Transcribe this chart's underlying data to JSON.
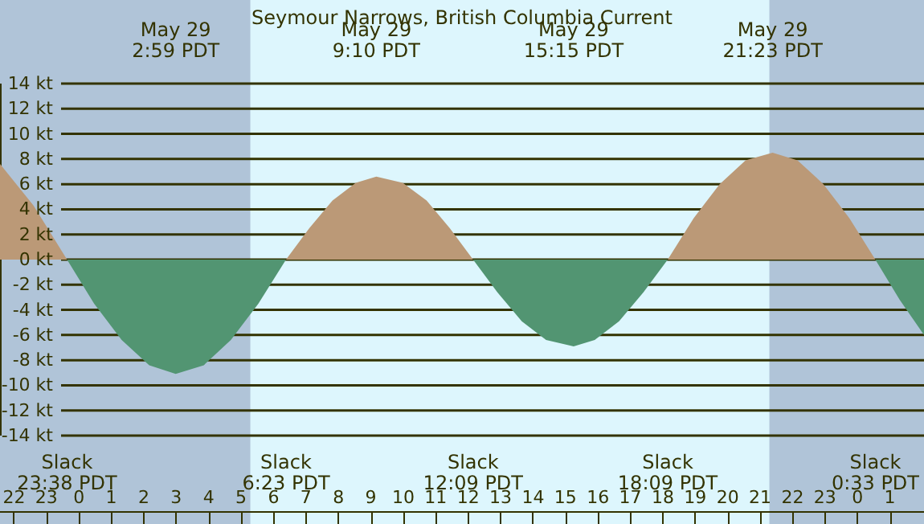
{
  "chart_data": {
    "type": "area",
    "title": "Seymour Narrows, British Columbia Current",
    "x": [
      "--05-28T21:34",
      "--05-28T22:36",
      "--05-28T23:38",
      "--05-29T00:28",
      "--05-29T01:19",
      "--05-29T02:10",
      "--05-29T02:59",
      "--05-29T03:51",
      "--05-29T04:41",
      "--05-29T05:32",
      "--05-29T06:23",
      "--05-29T07:06",
      "--05-29T07:49",
      "--05-29T08:32",
      "--05-29T09:10",
      "--05-29T09:59",
      "--05-29T10:43",
      "--05-29T11:26",
      "--05-29T12:09",
      "--05-29T12:54",
      "--05-29T13:39",
      "--05-29T14:24",
      "--05-29T15:15",
      "--05-29T15:54",
      "--05-29T16:39",
      "--05-29T17:24",
      "--05-29T18:09",
      "--05-29T18:57",
      "--05-29T19:45",
      "--05-29T20:33",
      "--05-29T21:23",
      "--05-29T22:09",
      "--05-29T22:57",
      "--05-29T23:45",
      "--05-30T00:33",
      "--05-30T01:18",
      "--05-30T02:03"
    ],
    "series": [
      {
        "color": "#bb9977",
        "values": [
          7.6,
          4.3,
          0,
          null,
          null,
          null,
          null,
          null,
          null,
          null,
          0,
          2.5,
          4.7,
          6.1,
          6.6,
          6.1,
          4.7,
          2.5,
          0,
          null,
          null,
          null,
          null,
          null,
          null,
          null,
          0,
          3.3,
          6.0,
          7.9,
          8.5,
          7.9,
          6.0,
          3.3,
          0,
          null,
          null
        ]
      },
      {
        "color": "#529572",
        "values": [
          null,
          null,
          0,
          -3.5,
          -6.4,
          -8.4,
          -9.1,
          -8.4,
          -6.4,
          -3.5,
          0,
          null,
          null,
          null,
          null,
          null,
          null,
          null,
          0,
          -2.6,
          -4.9,
          -6.4,
          -6.9,
          -6.4,
          -4.9,
          -2.6,
          0,
          null,
          null,
          null,
          null,
          null,
          null,
          null,
          0,
          -3.2,
          -6.0
        ]
      }
    ],
    "xlim": [
      "--05-28T21:34",
      "--05-30T02:03"
    ],
    "xticks": [
      {
        "value": "--05-28T22:00",
        "label": "22"
      },
      {
        "value": "--05-28T23:00",
        "label": "23"
      },
      {
        "value": "--05-29T00:00",
        "label": "0"
      },
      {
        "value": "--05-29T01:00",
        "label": "1"
      },
      {
        "value": "--05-29T02:00",
        "label": "2"
      },
      {
        "value": "--05-29T03:00",
        "label": "3"
      },
      {
        "value": "--05-29T04:00",
        "label": "4"
      },
      {
        "value": "--05-29T05:00",
        "label": "5"
      },
      {
        "value": "--05-29T06:00",
        "label": "6"
      },
      {
        "value": "--05-29T07:00",
        "label": "7"
      },
      {
        "value": "--05-29T08:00",
        "label": "8"
      },
      {
        "value": "--05-29T09:00",
        "label": "9"
      },
      {
        "value": "--05-29T10:00",
        "label": "10"
      },
      {
        "value": "--05-29T11:00",
        "label": "11"
      },
      {
        "value": "--05-29T12:00",
        "label": "12"
      },
      {
        "value": "--05-29T13:00",
        "label": "13"
      },
      {
        "value": "--05-29T14:00",
        "label": "14"
      },
      {
        "value": "--05-29T15:00",
        "label": "15"
      },
      {
        "value": "--05-29T16:00",
        "label": "16"
      },
      {
        "value": "--05-29T17:00",
        "label": "17"
      },
      {
        "value": "--05-29T18:00",
        "label": "18"
      },
      {
        "value": "--05-29T19:00",
        "label": "19"
      },
      {
        "value": "--05-29T20:00",
        "label": "20"
      },
      {
        "value": "--05-29T21:00",
        "label": "21"
      },
      {
        "value": "--05-29T22:00",
        "label": "22"
      },
      {
        "value": "--05-29T23:00",
        "label": "23"
      },
      {
        "value": "--05-30T00:00",
        "label": "0"
      },
      {
        "value": "--05-30T01:00",
        "label": "1"
      }
    ],
    "ylim": [
      -14,
      14
    ],
    "yticks": [
      {
        "value": 14,
        "label": "14 kt"
      },
      {
        "value": 12,
        "label": "12 kt"
      },
      {
        "value": 10,
        "label": "10 kt"
      },
      {
        "value": 8,
        "label": "8 kt"
      },
      {
        "value": 6,
        "label": "6 kt"
      },
      {
        "value": 4,
        "label": "4 kt"
      },
      {
        "value": 2,
        "label": "2 kt"
      },
      {
        "value": 0,
        "label": "0 kt"
      },
      {
        "value": -2,
        "label": "-2 kt"
      },
      {
        "value": -4,
        "label": "-4 kt"
      },
      {
        "value": -6,
        "label": "-6 kt"
      },
      {
        "value": -8,
        "label": "-8 kt"
      },
      {
        "value": -10,
        "label": "-10 kt"
      },
      {
        "value": -12,
        "label": "-12 kt"
      },
      {
        "value": -14,
        "label": "-14 kt"
      }
    ],
    "grid": "y",
    "bands": [
      {
        "axis": "x",
        "from": "--05-28T21:34",
        "to": "--05-29T05:17",
        "color": "#b0c4d8"
      },
      {
        "axis": "x",
        "from": "--05-29T21:17",
        "to": "--05-30T02:03",
        "color": "#b0c4d8"
      }
    ],
    "annotations": [
      "May 29\n2:59 PDT",
      "May 29\n9:10 PDT",
      "May 29\n15:15 PDT",
      "May 29\n21:23 PDT",
      "Slack\n23:38 PDT",
      "Slack\n6:23 PDT",
      "Slack\n12:09 PDT",
      "Slack\n18:09 PDT",
      "Slack\n0:33 PDT"
    ]
  }
}
